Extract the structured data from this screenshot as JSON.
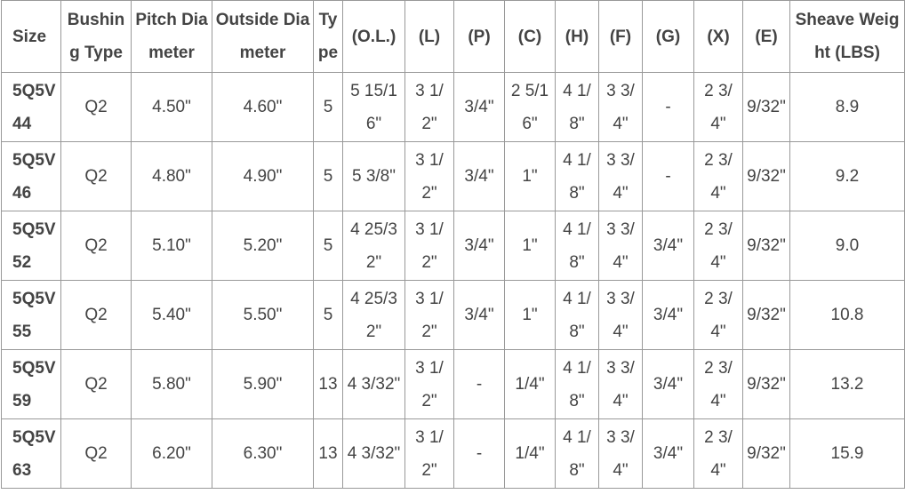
{
  "table": {
    "headers": [
      "Size",
      "Bushing Type",
      "Pitch Diameter",
      "Outside Diameter",
      "Type",
      "(O.L.)",
      "(L)",
      "(P)",
      "(C)",
      "(H)",
      "(F)",
      "(G)",
      "(X)",
      "(E)",
      "Sheave Weight (LBS)"
    ],
    "rows": [
      [
        "5Q5V44",
        "Q2",
        "4.50\"",
        "4.60\"",
        "5",
        "5 15/16\"",
        "3 1/2\"",
        "3/4\"",
        "2 5/16\"",
        "4 1/8\"",
        "3 3/4\"",
        "-",
        "2 3/4\"",
        "9/32\"",
        "8.9"
      ],
      [
        "5Q5V46",
        "Q2",
        "4.80\"",
        "4.90\"",
        "5",
        "5 3/8\"",
        "3 1/2\"",
        "3/4\"",
        "1\"",
        "4 1/8\"",
        "3 3/4\"",
        "-",
        "2 3/4\"",
        "9/32\"",
        "9.2"
      ],
      [
        "5Q5V52",
        "Q2",
        "5.10\"",
        "5.20\"",
        "5",
        "4 25/32\"",
        "3 1/2\"",
        "3/4\"",
        "1\"",
        "4 1/8\"",
        "3 3/4\"",
        "3/4\"",
        "2 3/4\"",
        "9/32\"",
        "9.0"
      ],
      [
        "5Q5V55",
        "Q2",
        "5.40\"",
        "5.50\"",
        "5",
        "4 25/32\"",
        "3 1/2\"",
        "3/4\"",
        "1\"",
        "4 1/8\"",
        "3 3/4\"",
        "3/4\"",
        "2 3/4\"",
        "9/32\"",
        "10.8"
      ],
      [
        "5Q5V59",
        "Q2",
        "5.80\"",
        "5.90\"",
        "13",
        "4 3/32\"",
        "3 1/2\"",
        "-",
        "1/4\"",
        "4 1/8\"",
        "3 3/4\"",
        "3/4\"",
        "2 3/4\"",
        "9/32\"",
        "13.2"
      ],
      [
        "5Q5V63",
        "Q2",
        "6.20\"",
        "6.30\"",
        "13",
        "4 3/32\"",
        "3 1/2\"",
        "-",
        "1/4\"",
        "4 1/8\"",
        "3 3/4\"",
        "3/4\"",
        "2 3/4\"",
        "9/32\"",
        "15.9"
      ]
    ]
  }
}
